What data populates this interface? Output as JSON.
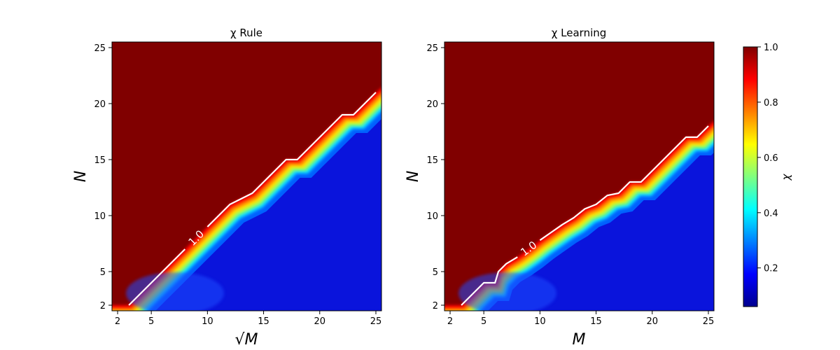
{
  "chart_data": [
    {
      "type": "heatmap",
      "title": "χ Rule",
      "xlabel": "√M",
      "ylabel": "N",
      "x_ticks": [
        2,
        5,
        10,
        15,
        20,
        25
      ],
      "y_ticks": [
        2,
        5,
        10,
        15,
        20,
        25
      ],
      "xlim": [
        1.5,
        25.5
      ],
      "ylim": [
        1.5,
        25.5
      ],
      "contour_level": 1.0,
      "contour_label": "1.0",
      "boundary": [
        {
          "x": 3,
          "y": 2
        },
        {
          "x": 4,
          "y": 3
        },
        {
          "x": 5,
          "y": 4
        },
        {
          "x": 6,
          "y": 5
        },
        {
          "x": 7,
          "y": 6
        },
        {
          "x": 8,
          "y": 7
        },
        {
          "x": 9,
          "y": 8
        },
        {
          "x": 10,
          "y": 9
        },
        {
          "x": 11,
          "y": 10
        },
        {
          "x": 12,
          "y": 11
        },
        {
          "x": 13,
          "y": 11.5
        },
        {
          "x": 14,
          "y": 12
        },
        {
          "x": 15,
          "y": 13
        },
        {
          "x": 16,
          "y": 14
        },
        {
          "x": 17,
          "y": 15
        },
        {
          "x": 18,
          "y": 15
        },
        {
          "x": 19,
          "y": 16
        },
        {
          "x": 20,
          "y": 17
        },
        {
          "x": 21,
          "y": 18
        },
        {
          "x": 22,
          "y": 19
        },
        {
          "x": 23,
          "y": 19
        },
        {
          "x": 24,
          "y": 20
        },
        {
          "x": 25,
          "y": 21
        }
      ]
    },
    {
      "type": "heatmap",
      "title": "χ Learning",
      "xlabel": "M",
      "ylabel": "N",
      "x_ticks": [
        2,
        5,
        10,
        15,
        20,
        25
      ],
      "y_ticks": [
        2,
        5,
        10,
        15,
        20,
        25
      ],
      "xlim": [
        1.5,
        25.5
      ],
      "ylim": [
        1.5,
        25.5
      ],
      "contour_level": 1.0,
      "contour_label": "1.0",
      "boundary": [
        {
          "x": 3,
          "y": 2
        },
        {
          "x": 4,
          "y": 3
        },
        {
          "x": 5,
          "y": 4
        },
        {
          "x": 6,
          "y": 4
        },
        {
          "x": 6.3,
          "y": 5
        },
        {
          "x": 7,
          "y": 5.7
        },
        {
          "x": 8,
          "y": 6.3
        },
        {
          "x": 9,
          "y": 7
        },
        {
          "x": 10,
          "y": 7.8
        },
        {
          "x": 11,
          "y": 8.5
        },
        {
          "x": 12,
          "y": 9.2
        },
        {
          "x": 13,
          "y": 9.8
        },
        {
          "x": 14,
          "y": 10.6
        },
        {
          "x": 15,
          "y": 11
        },
        {
          "x": 16,
          "y": 11.8
        },
        {
          "x": 17,
          "y": 12
        },
        {
          "x": 18,
          "y": 13
        },
        {
          "x": 19,
          "y": 13
        },
        {
          "x": 20,
          "y": 14
        },
        {
          "x": 21,
          "y": 15
        },
        {
          "x": 22,
          "y": 16
        },
        {
          "x": 23,
          "y": 17
        },
        {
          "x": 24,
          "y": 17
        },
        {
          "x": 25,
          "y": 18
        }
      ]
    }
  ],
  "colorbar": {
    "label": "χ",
    "colormap": "jet",
    "vmin": 0.06,
    "vmax": 1.0,
    "ticks": [
      "0.2",
      "0.4",
      "0.6",
      "0.8",
      "1.0"
    ],
    "tick_values": [
      0.2,
      0.4,
      0.6,
      0.8,
      1.0
    ]
  },
  "colors": {
    "upper_region": "#800000",
    "contour_line": "#ffffff"
  }
}
